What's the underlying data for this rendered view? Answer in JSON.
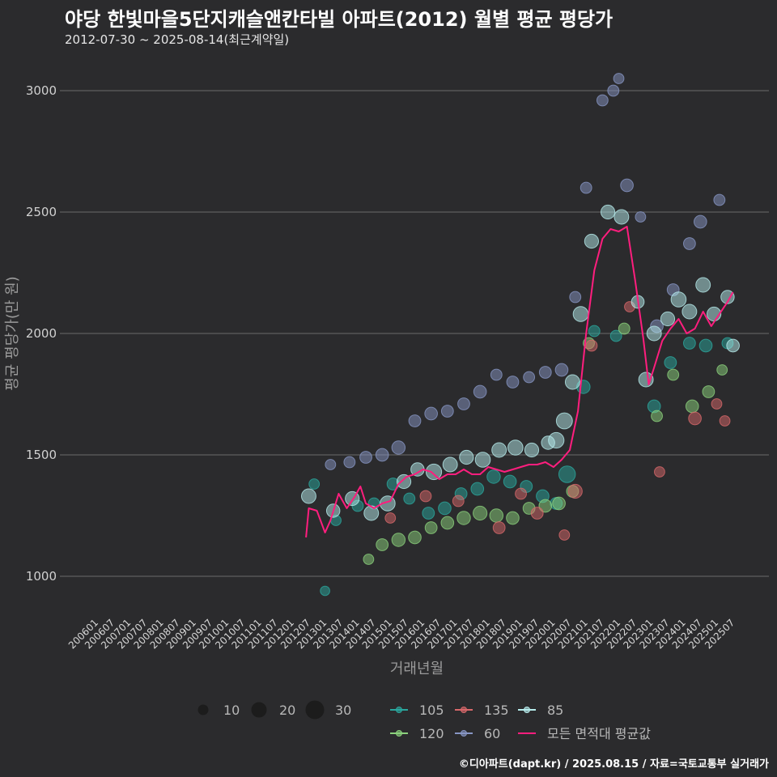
{
  "title": "야당 한빛마을5단지캐슬앤칸타빌 아파트(2012) 월별 평균 평당가",
  "subtitle": "2012-07-30 ~ 2025-08-14(최근계약일)",
  "footer": "©디아파트(dapt.kr) / 2025.08.15 / 자료=국토교통부 실거래가",
  "chart_data": {
    "type": "scatter",
    "xlabel": "거래년월",
    "ylabel": "평균 평당가(만 원)",
    "ylim": [
      820,
      3080
    ],
    "yticks": [
      1000,
      1500,
      2000,
      2500,
      3000
    ],
    "xlim": [
      "2006-01",
      "2025-09"
    ],
    "xticks": [
      "200601",
      "200607",
      "200701",
      "200707",
      "200801",
      "200807",
      "200901",
      "200907",
      "201001",
      "201007",
      "201101",
      "201107",
      "201201",
      "201207",
      "201301",
      "201307",
      "201401",
      "201407",
      "201501",
      "201507",
      "201601",
      "201607",
      "201701",
      "201707",
      "201801",
      "201807",
      "201901",
      "201907",
      "202001",
      "202007",
      "202101",
      "202107",
      "202201",
      "202207",
      "202301",
      "202307",
      "202401",
      "202407",
      "202501",
      "202507"
    ],
    "size_legend": {
      "sizes": [
        "10",
        "20",
        "30"
      ]
    },
    "colors": {
      "105": "#2aa79e",
      "120": "#8bd17c",
      "135": "#d8686a",
      "60": "#8796c4",
      "85": "#b6ecec",
      "avg": "#ff1e7e"
    },
    "series": [
      {
        "name": "105",
        "points": [
          [
            "2012-10",
            1380,
            4
          ],
          [
            "2013-02",
            940,
            3
          ],
          [
            "2013-06",
            1230,
            4
          ],
          [
            "2014-02",
            1290,
            5
          ],
          [
            "2014-08",
            1300,
            5
          ],
          [
            "2015-03",
            1380,
            6
          ],
          [
            "2015-09",
            1320,
            5
          ],
          [
            "2016-04",
            1260,
            6
          ],
          [
            "2016-10",
            1280,
            7
          ],
          [
            "2017-04",
            1340,
            6
          ],
          [
            "2017-10",
            1360,
            7
          ],
          [
            "2018-04",
            1410,
            8
          ],
          [
            "2018-10",
            1390,
            7
          ],
          [
            "2019-04",
            1370,
            6
          ],
          [
            "2019-10",
            1330,
            7
          ],
          [
            "2020-03",
            1300,
            6
          ],
          [
            "2020-07",
            1420,
            14
          ],
          [
            "2021-01",
            1780,
            8
          ],
          [
            "2021-05",
            2010,
            5
          ],
          [
            "2022-01",
            1990,
            5
          ],
          [
            "2023-03",
            1700,
            7
          ],
          [
            "2023-09",
            1880,
            6
          ],
          [
            "2024-04",
            1960,
            6
          ],
          [
            "2024-10",
            1950,
            7
          ],
          [
            "2025-06",
            1960,
            5
          ]
        ]
      },
      {
        "name": "120",
        "points": [
          [
            "2014-06",
            1070,
            4
          ],
          [
            "2014-11",
            1130,
            6
          ],
          [
            "2015-05",
            1150,
            8
          ],
          [
            "2015-11",
            1160,
            7
          ],
          [
            "2016-05",
            1200,
            6
          ],
          [
            "2016-11",
            1220,
            7
          ],
          [
            "2017-05",
            1240,
            8
          ],
          [
            "2017-11",
            1260,
            9
          ],
          [
            "2018-05",
            1250,
            8
          ],
          [
            "2018-11",
            1240,
            7
          ],
          [
            "2019-05",
            1280,
            6
          ],
          [
            "2019-11",
            1290,
            7
          ],
          [
            "2020-04",
            1300,
            7
          ],
          [
            "2020-09",
            1350,
            6
          ],
          [
            "2021-03",
            1960,
            5
          ],
          [
            "2022-04",
            2020,
            5
          ],
          [
            "2023-04",
            1660,
            5
          ],
          [
            "2023-10",
            1830,
            5
          ],
          [
            "2024-05",
            1700,
            7
          ],
          [
            "2024-11",
            1760,
            6
          ],
          [
            "2025-04",
            1850,
            4
          ]
        ]
      },
      {
        "name": "135",
        "points": [
          [
            "2015-02",
            1240,
            4
          ],
          [
            "2016-03",
            1330,
            5
          ],
          [
            "2017-03",
            1310,
            5
          ],
          [
            "2018-06",
            1200,
            6
          ],
          [
            "2019-02",
            1340,
            5
          ],
          [
            "2019-08",
            1260,
            6
          ],
          [
            "2020-06",
            1170,
            4
          ],
          [
            "2020-10",
            1350,
            9
          ],
          [
            "2021-04",
            1950,
            5
          ],
          [
            "2022-06",
            2110,
            4
          ],
          [
            "2023-05",
            1430,
            4
          ],
          [
            "2024-06",
            1650,
            7
          ],
          [
            "2025-02",
            1710,
            4
          ],
          [
            "2025-05",
            1640,
            4
          ]
        ]
      },
      {
        "name": "60",
        "points": [
          [
            "2013-04",
            1460,
            4
          ],
          [
            "2013-11",
            1470,
            5
          ],
          [
            "2014-05",
            1490,
            6
          ],
          [
            "2014-11",
            1500,
            7
          ],
          [
            "2015-05",
            1530,
            8
          ],
          [
            "2015-11",
            1640,
            6
          ],
          [
            "2016-05",
            1670,
            7
          ],
          [
            "2016-11",
            1680,
            6
          ],
          [
            "2017-05",
            1710,
            6
          ],
          [
            "2017-11",
            1760,
            7
          ],
          [
            "2018-05",
            1830,
            5
          ],
          [
            "2018-11",
            1800,
            6
          ],
          [
            "2019-05",
            1820,
            5
          ],
          [
            "2019-11",
            1840,
            6
          ],
          [
            "2020-05",
            1850,
            7
          ],
          [
            "2020-10",
            2150,
            5
          ],
          [
            "2021-02",
            2600,
            5
          ],
          [
            "2021-08",
            2960,
            5
          ],
          [
            "2021-12",
            3000,
            5
          ],
          [
            "2022-02",
            3050,
            4
          ],
          [
            "2022-05",
            2610,
            7
          ],
          [
            "2022-10",
            2480,
            4
          ],
          [
            "2023-04",
            2030,
            7
          ],
          [
            "2023-10",
            2180,
            6
          ],
          [
            "2024-04",
            2370,
            6
          ],
          [
            "2024-08",
            2460,
            7
          ],
          [
            "2025-03",
            2550,
            5
          ]
        ]
      },
      {
        "name": "85",
        "points": [
          [
            "2012-08",
            1330,
            10
          ],
          [
            "2013-05",
            1270,
            8
          ],
          [
            "2013-12",
            1320,
            9
          ],
          [
            "2014-07",
            1260,
            10
          ],
          [
            "2015-01",
            1300,
            11
          ],
          [
            "2015-07",
            1390,
            9
          ],
          [
            "2015-12",
            1440,
            8
          ],
          [
            "2016-06",
            1430,
            12
          ],
          [
            "2016-12",
            1460,
            10
          ],
          [
            "2017-06",
            1490,
            9
          ],
          [
            "2017-12",
            1480,
            11
          ],
          [
            "2018-06",
            1520,
            10
          ],
          [
            "2018-12",
            1530,
            11
          ],
          [
            "2019-06",
            1520,
            9
          ],
          [
            "2019-12",
            1550,
            8
          ],
          [
            "2020-03",
            1560,
            12
          ],
          [
            "2020-06",
            1640,
            13
          ],
          [
            "2020-09",
            1800,
            10
          ],
          [
            "2020-12",
            2080,
            11
          ],
          [
            "2021-04",
            2380,
            9
          ],
          [
            "2021-10",
            2500,
            9
          ],
          [
            "2022-03",
            2480,
            10
          ],
          [
            "2022-09",
            2130,
            7
          ],
          [
            "2022-12",
            1810,
            10
          ],
          [
            "2023-03",
            2000,
            10
          ],
          [
            "2023-08",
            2060,
            9
          ],
          [
            "2023-12",
            2140,
            11
          ],
          [
            "2024-04",
            2090,
            10
          ],
          [
            "2024-09",
            2200,
            10
          ],
          [
            "2025-01",
            2080,
            9
          ],
          [
            "2025-06",
            2150,
            8
          ],
          [
            "2025-08",
            1950,
            7
          ]
        ]
      }
    ],
    "average_line": {
      "name": "모든 면적대 평균값",
      "points": [
        [
          "2012-07",
          1160
        ],
        [
          "2012-08",
          1280
        ],
        [
          "2012-11",
          1270
        ],
        [
          "2013-02",
          1180
        ],
        [
          "2013-04",
          1230
        ],
        [
          "2013-07",
          1340
        ],
        [
          "2013-10",
          1280
        ],
        [
          "2014-01",
          1330
        ],
        [
          "2014-03",
          1370
        ],
        [
          "2014-05",
          1300
        ],
        [
          "2014-08",
          1280
        ],
        [
          "2014-11",
          1300
        ],
        [
          "2015-02",
          1310
        ],
        [
          "2015-05",
          1380
        ],
        [
          "2015-08",
          1410
        ],
        [
          "2015-11",
          1420
        ],
        [
          "2016-02",
          1440
        ],
        [
          "2016-05",
          1430
        ],
        [
          "2016-08",
          1400
        ],
        [
          "2016-11",
          1420
        ],
        [
          "2017-02",
          1420
        ],
        [
          "2017-05",
          1440
        ],
        [
          "2017-08",
          1420
        ],
        [
          "2017-11",
          1420
        ],
        [
          "2018-02",
          1450
        ],
        [
          "2018-05",
          1440
        ],
        [
          "2018-08",
          1430
        ],
        [
          "2018-11",
          1440
        ],
        [
          "2019-02",
          1450
        ],
        [
          "2019-05",
          1460
        ],
        [
          "2019-08",
          1460
        ],
        [
          "2019-11",
          1470
        ],
        [
          "2020-02",
          1450
        ],
        [
          "2020-05",
          1480
        ],
        [
          "2020-08",
          1520
        ],
        [
          "2020-11",
          1680
        ],
        [
          "2021-02",
          2000
        ],
        [
          "2021-05",
          2260
        ],
        [
          "2021-08",
          2390
        ],
        [
          "2021-11",
          2430
        ],
        [
          "2022-02",
          2420
        ],
        [
          "2022-05",
          2440
        ],
        [
          "2022-08",
          2220
        ],
        [
          "2022-11",
          1980
        ],
        [
          "2023-01",
          1790
        ],
        [
          "2023-03",
          1860
        ],
        [
          "2023-06",
          1970
        ],
        [
          "2023-09",
          2020
        ],
        [
          "2023-12",
          2060
        ],
        [
          "2024-03",
          2000
        ],
        [
          "2024-06",
          2020
        ],
        [
          "2024-09",
          2090
        ],
        [
          "2024-12",
          2030
        ],
        [
          "2025-03",
          2080
        ],
        [
          "2025-06",
          2130
        ],
        [
          "2025-08",
          2170
        ]
      ]
    },
    "legend": {
      "group_items": [
        {
          "key": "105",
          "label": "105"
        },
        {
          "key": "135",
          "label": "135"
        },
        {
          "key": "85",
          "label": "85"
        },
        {
          "key": "120",
          "label": "120"
        },
        {
          "key": "60",
          "label": "60"
        },
        {
          "key": "avg",
          "label": "모든 면적대 평균값"
        }
      ]
    }
  }
}
